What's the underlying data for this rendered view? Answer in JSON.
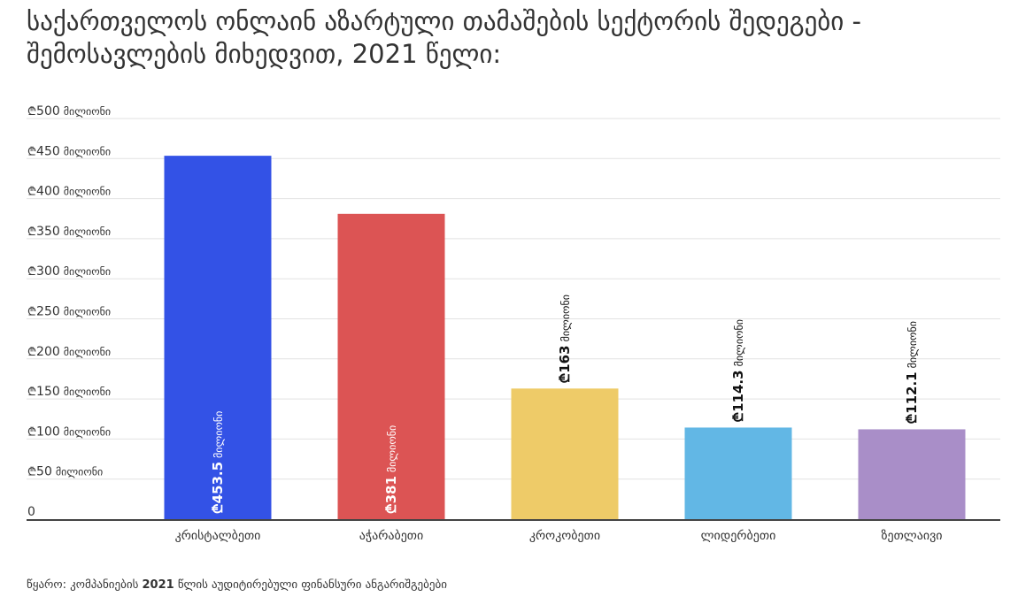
{
  "chart_data": {
    "type": "bar",
    "title": "საქართველოს ონლაინ აზარტული თამაშების სექტორის შედეგები - შემოსავლების მიხედვით, 2021 წელი:",
    "categories": [
      "კრისტალბეთი",
      "აჭარაბეთი",
      "კროკობეთი",
      "ლიდერბეთი",
      "ზეთლაივი"
    ],
    "values": [
      453.5,
      381,
      163,
      114.3,
      112.1
    ],
    "value_labels": [
      "₾453.5",
      "₾381",
      "₾163",
      "₾114.3",
      "₾112.1"
    ],
    "value_unit": "მილიონი",
    "colors": [
      "#3352e6",
      "#dc5454",
      "#eecb68",
      "#62b7e5",
      "#a98ec8"
    ],
    "ylim": [
      0,
      500
    ],
    "yticks": [
      {
        "value": 0,
        "currency": "",
        "number": "0",
        "unit": ""
      },
      {
        "value": 50,
        "currency": "₾",
        "number": "50",
        "unit": "მილიონი"
      },
      {
        "value": 100,
        "currency": "₾",
        "number": "100",
        "unit": "მილიონი"
      },
      {
        "value": 150,
        "currency": "₾",
        "number": "150",
        "unit": "მილიონი"
      },
      {
        "value": 200,
        "currency": "₾",
        "number": "200",
        "unit": "მილიონი"
      },
      {
        "value": 250,
        "currency": "₾",
        "number": "250",
        "unit": "მილიონი"
      },
      {
        "value": 300,
        "currency": "₾",
        "number": "300",
        "unit": "მილიონი"
      },
      {
        "value": 350,
        "currency": "₾",
        "number": "350",
        "unit": "მილიონი"
      },
      {
        "value": 400,
        "currency": "₾",
        "number": "400",
        "unit": "მილიონი"
      },
      {
        "value": 450,
        "currency": "₾",
        "number": "450",
        "unit": "მილიონი"
      },
      {
        "value": 500,
        "currency": "₾",
        "number": "500",
        "unit": "მილიონი"
      }
    ],
    "grid": true,
    "legend": "none"
  },
  "source": {
    "prefix": "წყარო: კომპანიების ",
    "year": "2021",
    "suffix": " წლის აუდიტირებული ფინანსური ანგარიშგებები"
  }
}
